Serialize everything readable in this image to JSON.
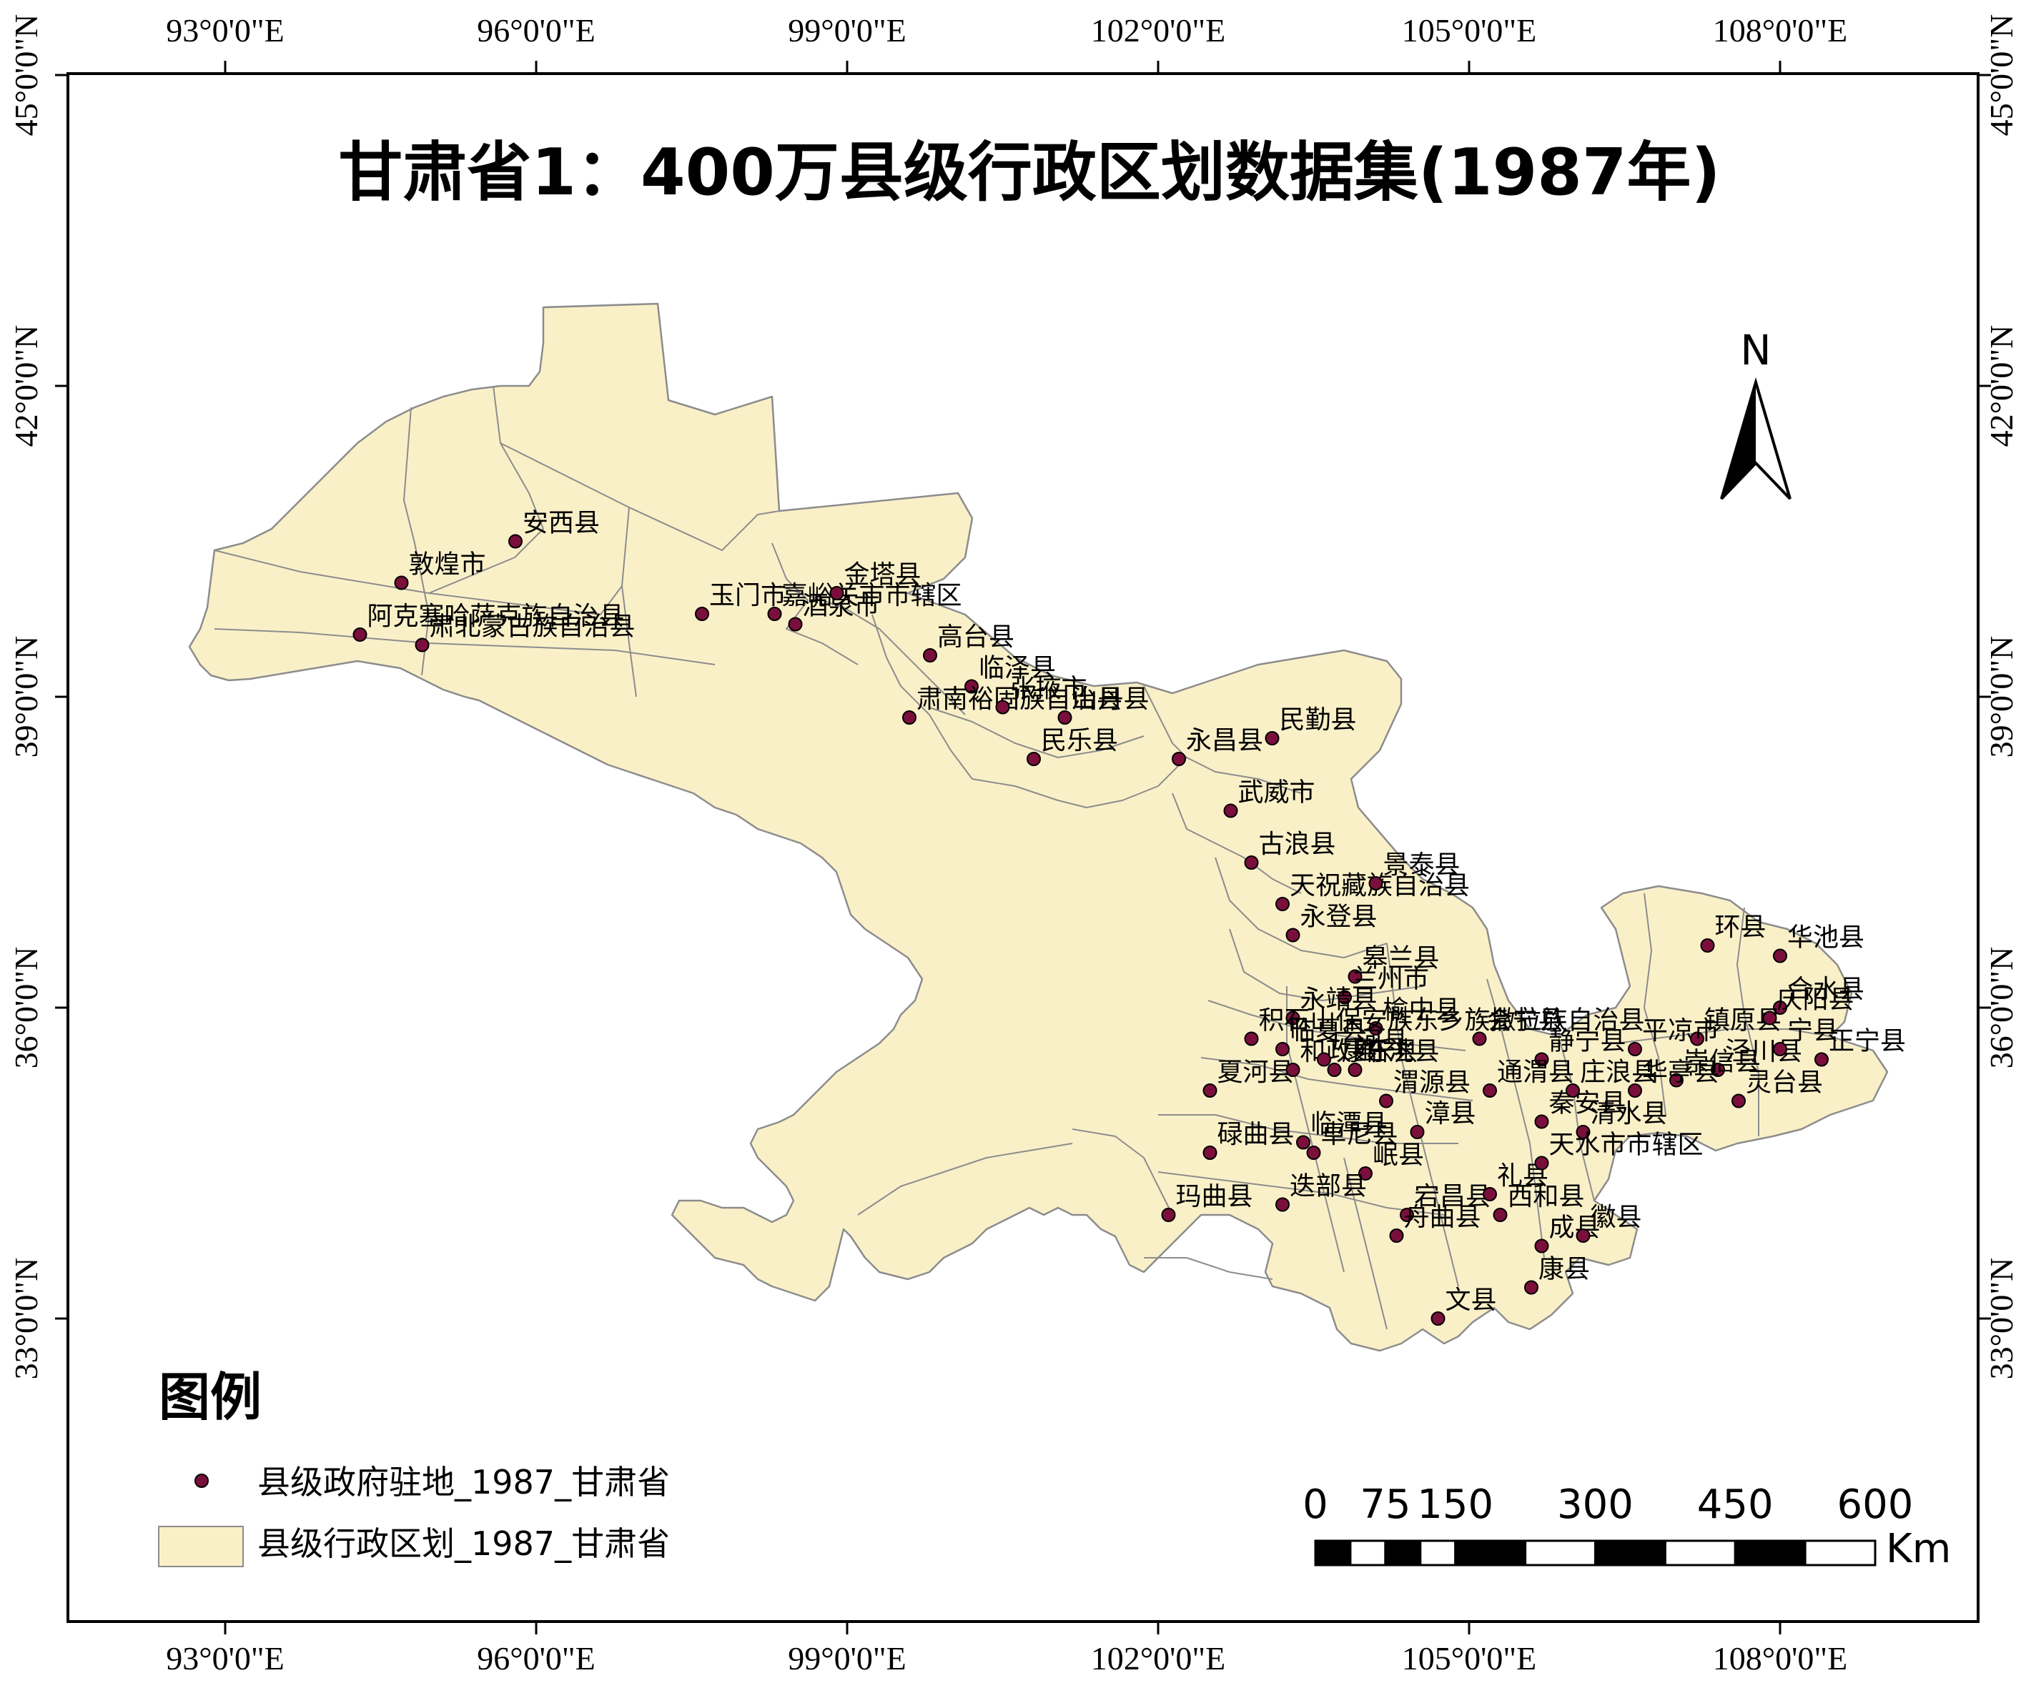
{
  "title": "甘肃省1：400万县级行政区划数据集(1987年)",
  "north_arrow": {
    "label": "N"
  },
  "legend": {
    "title": "图例",
    "items": [
      {
        "symbol": "point-dot-icon",
        "label": "县级政府驻地_1987_甘肃省"
      },
      {
        "symbol": "polygon-swatch-icon",
        "label": "县级行政区划_1987_甘肃省"
      }
    ]
  },
  "scale_bar": {
    "labels": [
      "0",
      "75",
      "150",
      "300",
      "450",
      "600"
    ],
    "unit": "Km"
  },
  "graticule": {
    "longitude_labels": [
      "93°0'0\"E",
      "96°0'0\"E",
      "99°0'0\"E",
      "102°0'0\"E",
      "105°0'0\"E",
      "108°0'0\"E"
    ],
    "latitude_labels": [
      "45°0'0\"N",
      "42°0'0\"N",
      "39°0'0\"N",
      "36°0'0\"N",
      "33°0'0\"N"
    ]
  },
  "colors": {
    "land_fill": "#faf0c8",
    "boundary": "#8c8c8c",
    "point_fill": "#7a0f3c",
    "frame": "#000000"
  },
  "places": [
    {
      "name": "安西县",
      "lon": 95.8,
      "lat": 40.5
    },
    {
      "name": "敦煌市",
      "lon": 94.7,
      "lat": 40.1
    },
    {
      "name": "阿克塞哈萨克族自治县",
      "lon": 94.3,
      "lat": 39.6
    },
    {
      "name": "肃北蒙古族自治县",
      "lon": 94.9,
      "lat": 39.5
    },
    {
      "name": "玉门市",
      "lon": 97.6,
      "lat": 39.8
    },
    {
      "name": "嘉峪关市市辖区",
      "lon": 98.3,
      "lat": 39.8
    },
    {
      "name": "酒泉市",
      "lon": 98.5,
      "lat": 39.7
    },
    {
      "name": "金塔县",
      "lon": 98.9,
      "lat": 40.0
    },
    {
      "name": "高台县",
      "lon": 99.8,
      "lat": 39.4
    },
    {
      "name": "临泽县",
      "lon": 100.2,
      "lat": 39.1
    },
    {
      "name": "肃南裕固族自治县",
      "lon": 99.6,
      "lat": 38.8
    },
    {
      "name": "张掖市",
      "lon": 100.5,
      "lat": 38.9
    },
    {
      "name": "民乐县",
      "lon": 100.8,
      "lat": 38.4
    },
    {
      "name": "山丹县",
      "lon": 101.1,
      "lat": 38.8
    },
    {
      "name": "永昌县",
      "lon": 102.2,
      "lat": 38.4
    },
    {
      "name": "民勤县",
      "lon": 103.1,
      "lat": 38.6
    },
    {
      "name": "武威市",
      "lon": 102.7,
      "lat": 37.9
    },
    {
      "name": "古浪县",
      "lon": 102.9,
      "lat": 37.4
    },
    {
      "name": "天祝藏族自治县",
      "lon": 103.2,
      "lat": 37.0
    },
    {
      "name": "景泰县",
      "lon": 104.1,
      "lat": 37.2
    },
    {
      "name": "永登县",
      "lon": 103.3,
      "lat": 36.7
    },
    {
      "name": "皋兰县",
      "lon": 103.9,
      "lat": 36.3
    },
    {
      "name": "兰州市",
      "lon": 103.8,
      "lat": 36.1
    },
    {
      "name": "永靖县",
      "lon": 103.3,
      "lat": 35.9
    },
    {
      "name": "榆中县",
      "lon": 104.1,
      "lat": 35.8
    },
    {
      "name": "积石山保安族东乡族撒拉族自治县",
      "lon": 102.9,
      "lat": 35.7
    },
    {
      "name": "临夏县",
      "lon": 103.2,
      "lat": 35.6
    },
    {
      "name": "夏河县",
      "lon": 102.5,
      "lat": 35.2
    },
    {
      "name": "和政县",
      "lon": 103.3,
      "lat": 35.4
    },
    {
      "name": "广河县",
      "lon": 103.6,
      "lat": 35.5
    },
    {
      "name": "康乐县",
      "lon": 103.7,
      "lat": 35.4
    },
    {
      "name": "临洮县",
      "lon": 103.9,
      "lat": 35.4
    },
    {
      "name": "渭源县",
      "lon": 104.2,
      "lat": 35.1
    },
    {
      "name": "会宁县",
      "lon": 105.1,
      "lat": 35.7
    },
    {
      "name": "静宁县",
      "lon": 105.7,
      "lat": 35.5
    },
    {
      "name": "通渭县",
      "lon": 105.2,
      "lat": 35.2
    },
    {
      "name": "秦安县",
      "lon": 105.7,
      "lat": 34.9
    },
    {
      "name": "庄浪县",
      "lon": 106.0,
      "lat": 35.2
    },
    {
      "name": "清水县",
      "lon": 106.1,
      "lat": 34.8
    },
    {
      "name": "漳县",
      "lon": 104.5,
      "lat": 34.8
    },
    {
      "name": "碌曲县",
      "lon": 102.5,
      "lat": 34.6
    },
    {
      "name": "卓尼县",
      "lon": 103.5,
      "lat": 34.6
    },
    {
      "name": "临潭县",
      "lon": 103.4,
      "lat": 34.7
    },
    {
      "name": "岷县",
      "lon": 104.0,
      "lat": 34.4
    },
    {
      "name": "玛曲县",
      "lon": 102.1,
      "lat": 34.0
    },
    {
      "name": "迭部县",
      "lon": 103.2,
      "lat": 34.1
    },
    {
      "name": "宕昌县",
      "lon": 104.4,
      "lat": 34.0
    },
    {
      "name": "礼县",
      "lon": 105.2,
      "lat": 34.2
    },
    {
      "name": "天水市市辖区",
      "lon": 105.7,
      "lat": 34.5
    },
    {
      "name": "西和县",
      "lon": 105.3,
      "lat": 34.0
    },
    {
      "name": "成县",
      "lon": 105.7,
      "lat": 33.7
    },
    {
      "name": "徽县",
      "lon": 106.1,
      "lat": 33.8
    },
    {
      "name": "舟曲县",
      "lon": 104.3,
      "lat": 33.8
    },
    {
      "name": "康县",
      "lon": 105.6,
      "lat": 33.3
    },
    {
      "name": "文县",
      "lon": 104.7,
      "lat": 33.0
    },
    {
      "name": "环县",
      "lon": 107.3,
      "lat": 36.6
    },
    {
      "name": "华池县",
      "lon": 108.0,
      "lat": 36.5
    },
    {
      "name": "合水县",
      "lon": 108.0,
      "lat": 36.0
    },
    {
      "name": "镇原县",
      "lon": 107.2,
      "lat": 35.7
    },
    {
      "name": "庆阳县",
      "lon": 107.9,
      "lat": 35.9
    },
    {
      "name": "泾川县",
      "lon": 107.4,
      "lat": 35.4
    },
    {
      "name": "宁县",
      "lon": 108.0,
      "lat": 35.6
    },
    {
      "name": "正宁县",
      "lon": 108.4,
      "lat": 35.5
    },
    {
      "name": "崇信县",
      "lon": 107.0,
      "lat": 35.3
    },
    {
      "name": "平凉市",
      "lon": 106.6,
      "lat": 35.6
    },
    {
      "name": "灵台县",
      "lon": 107.6,
      "lat": 35.1
    },
    {
      "name": "华亭县",
      "lon": 106.6,
      "lat": 35.2
    }
  ]
}
